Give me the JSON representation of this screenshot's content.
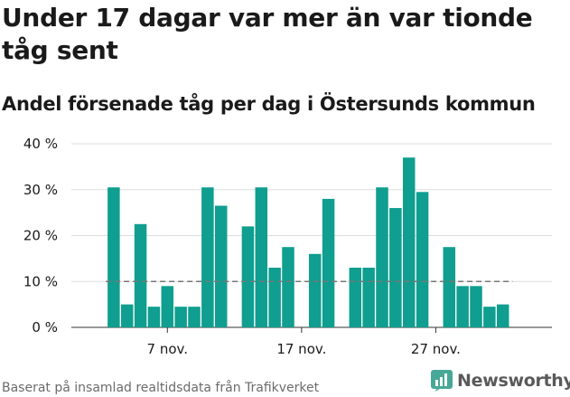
{
  "title": "Under 17 dagar var mer än var tionde tåg sent",
  "subtitle": "Andel försenade tåg per dag i Östersunds kommun",
  "footer": "Baserat på insamlad realtidsdata från Trafikverket",
  "brand": {
    "name": "Newsworthy",
    "color": "#48a897"
  },
  "colors": {
    "bar": "#0f9e8f",
    "grid": "#dddddd",
    "reference_line": "#777777",
    "text": "#1a1a1a"
  },
  "chart_data": {
    "type": "bar",
    "title": "Andel försenade tåg per dag i Östersunds kommun",
    "xlabel": "",
    "ylabel": "",
    "ylim": [
      0,
      40
    ],
    "yticks": [
      0,
      10,
      20,
      30,
      40
    ],
    "ytick_labels": [
      "0 %",
      "10 %",
      "20 %",
      "30 %",
      "40 %"
    ],
    "x_start_day": 2,
    "x_end_day": 30,
    "xticks": [
      7,
      17,
      27
    ],
    "xtick_labels": [
      "7 nov.",
      "17 nov.",
      "27 nov."
    ],
    "reference_line": {
      "value": 10,
      "style": "dashed"
    },
    "grid": true,
    "legend": false,
    "x": [
      3,
      4,
      5,
      6,
      7,
      8,
      9,
      10,
      11,
      13,
      14,
      15,
      16,
      18,
      19,
      21,
      22,
      23,
      24,
      25,
      26,
      28,
      29,
      30,
      31,
      32
    ],
    "values": [
      30.5,
      5,
      22.5,
      4.5,
      9,
      4.5,
      4.5,
      30.5,
      26.5,
      22,
      30.5,
      13,
      17.5,
      16,
      28,
      13,
      13,
      30.5,
      26,
      37,
      29.5,
      17.5,
      9,
      9,
      4.5,
      5
    ]
  }
}
